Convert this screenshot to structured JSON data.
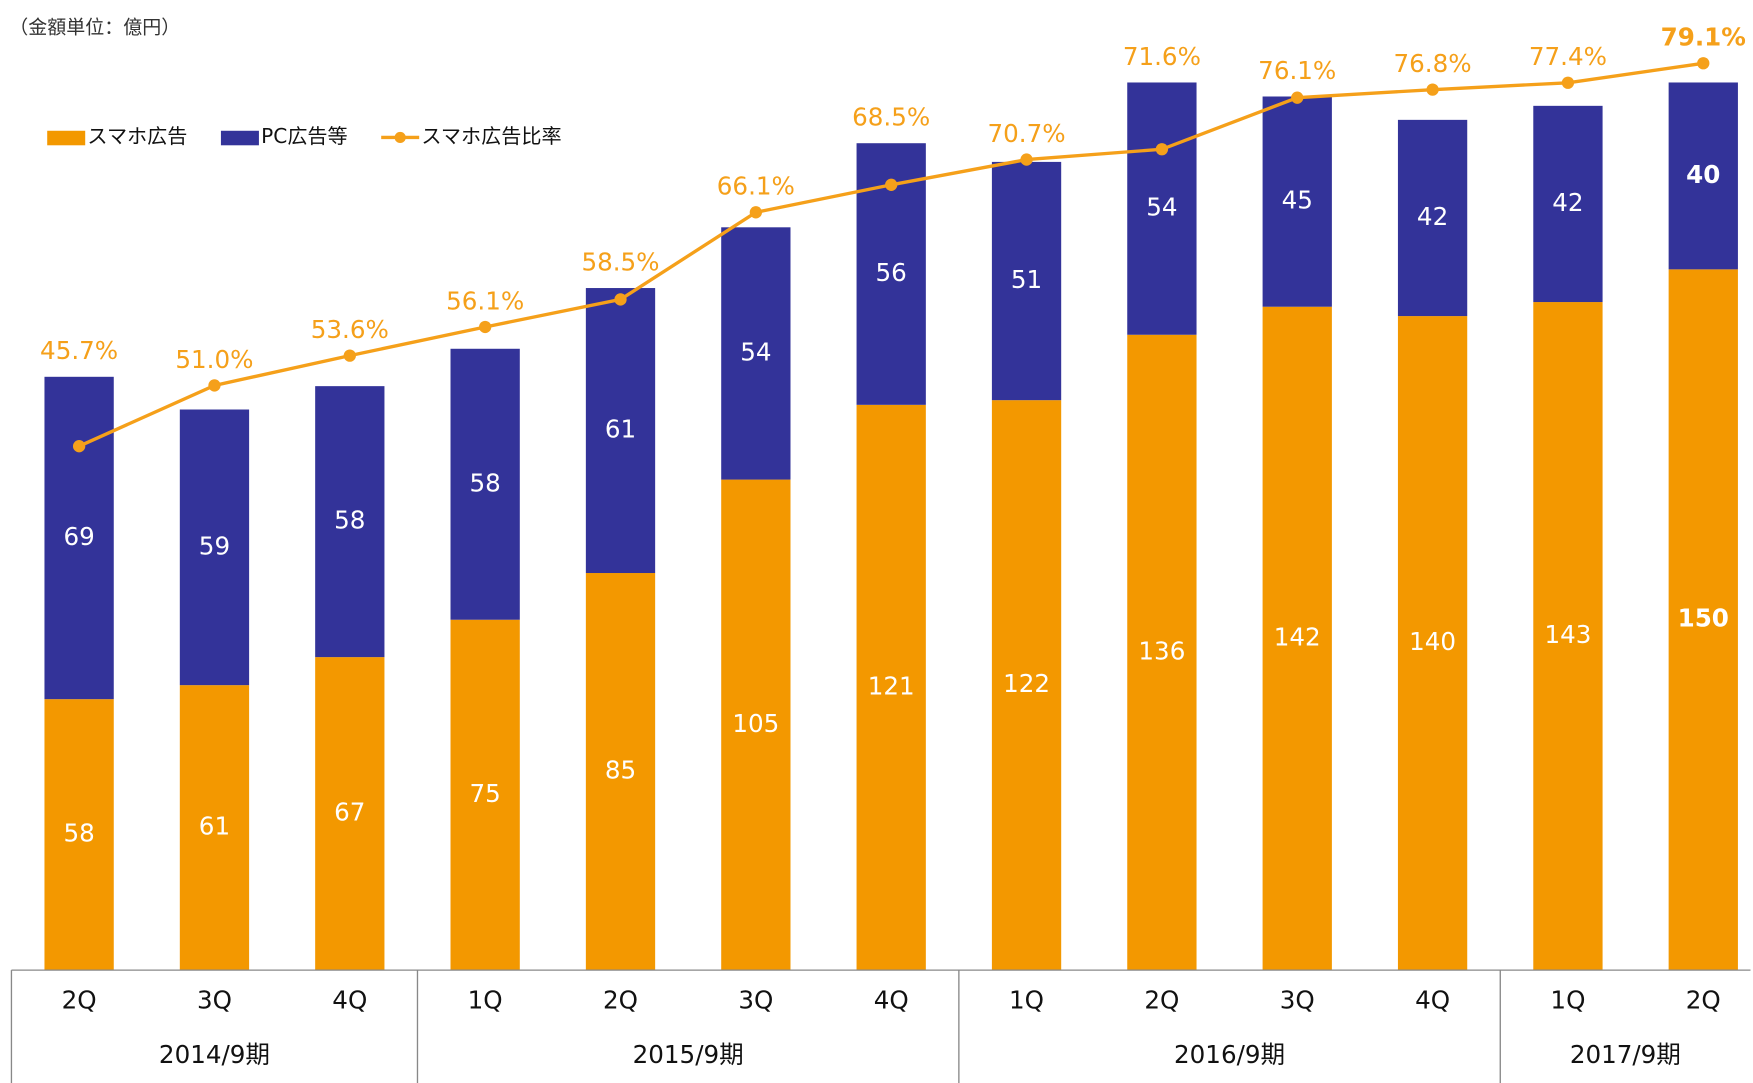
{
  "chart_data": {
    "type": "bar",
    "note": "（金額単位：億円）",
    "categories": [
      "2Q",
      "3Q",
      "4Q",
      "1Q",
      "2Q",
      "3Q",
      "4Q",
      "1Q",
      "2Q",
      "3Q",
      "4Q",
      "1Q",
      "2Q"
    ],
    "groups": [
      {
        "label": "2014/9期",
        "count": 3
      },
      {
        "label": "2015/9期",
        "count": 4
      },
      {
        "label": "2016/9期",
        "count": 4
      },
      {
        "label": "2017/9期",
        "count": 2
      }
    ],
    "stacked": true,
    "series": [
      {
        "name": "スマホ広告",
        "color": "#f39800",
        "values": [
          58,
          61,
          67,
          75,
          85,
          105,
          121,
          122,
          136,
          142,
          140,
          143,
          150
        ]
      },
      {
        "name": "PC広告等",
        "color": "#333399",
        "values": [
          69,
          59,
          58,
          58,
          61,
          54,
          56,
          51,
          54,
          45,
          42,
          42,
          40
        ]
      },
      {
        "name": "スマホ広告比率",
        "color": "#f5a01a",
        "type": "line",
        "axis": "y2",
        "values": [
          45.7,
          51.0,
          53.6,
          56.1,
          58.5,
          66.1,
          68.5,
          70.7,
          71.6,
          76.1,
          76.8,
          77.4,
          79.1
        ],
        "value_labels": [
          "45.7%",
          "51.0%",
          "53.6%",
          "56.1%",
          "58.5%",
          "66.1%",
          "68.5%",
          "70.7%",
          "71.6%",
          "76.1%",
          "76.8%",
          "77.4%",
          "79.1%"
        ]
      }
    ],
    "ylim": [
      0,
      200
    ],
    "y2lim": [
      0,
      81.5
    ],
    "legend": "top-left"
  }
}
